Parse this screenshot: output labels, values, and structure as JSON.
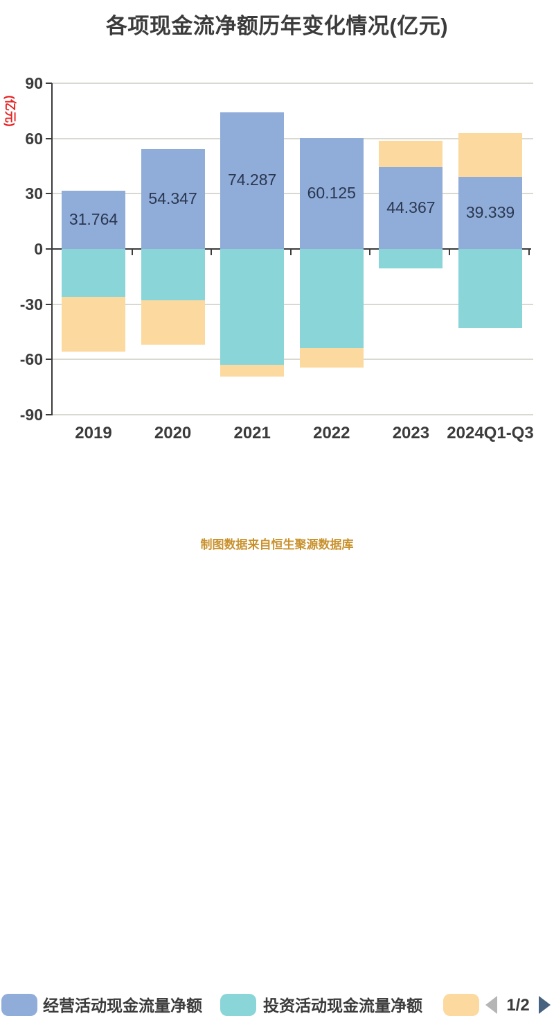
{
  "title": "各项现金流净额历年变化情况(亿元)",
  "y_axis": {
    "name": "(亿元)",
    "ticks": [
      90,
      60,
      30,
      0,
      -30,
      -60,
      -90
    ]
  },
  "chart_data": {
    "type": "bar",
    "stacked": true,
    "title": "各项现金流净额历年变化情况(亿元)",
    "unit": "亿元",
    "categories": [
      "2019",
      "2020",
      "2021",
      "2022",
      "2023",
      "2024Q1-Q3"
    ],
    "series": [
      {
        "name": "经营活动现金流量净额",
        "color": "#90acd9",
        "values": [
          31.764,
          54.347,
          74.287,
          60.125,
          44.367,
          39.339
        ],
        "value_labels": [
          "31.764",
          "54.347",
          "74.287",
          "60.125",
          "44.367",
          "39.339"
        ]
      },
      {
        "name": "投资活动现金流量净额",
        "color": "#89d5d8",
        "values": [
          -26.0,
          -27.9,
          -63.0,
          -53.7,
          -10.5,
          -42.9
        ]
      },
      {
        "name": "",
        "color": "#fcd99e",
        "values": [
          -29.7,
          -24.1,
          -6.3,
          -10.7,
          14.3,
          23.5
        ]
      }
    ],
    "ylim": [
      -90,
      90
    ],
    "grid": true,
    "legend_position": "bottom"
  },
  "legend": {
    "pager": "1/2"
  },
  "caption": "制图数据来自恒生聚源数据库",
  "colors": {
    "axis_text": "#3b3b3b",
    "value_label": "#2a3750",
    "unit_label": "#e62222",
    "gridline": "#d9d9d1",
    "caption": "#c9912c",
    "pager_prev": "#b5b5b5",
    "pager_next": "#48637f"
  }
}
